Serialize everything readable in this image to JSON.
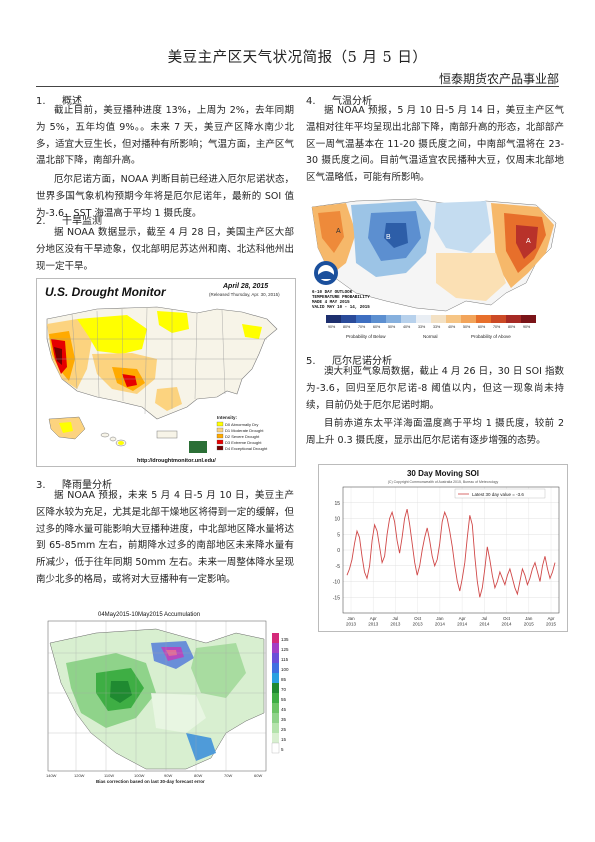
{
  "title": "美豆主产区天气状况简报（5 月 5 日）",
  "org": "恒泰期货农产品事业部",
  "sections": [
    {
      "num": "1.",
      "heading": "概述",
      "paras": [
        "截止目前，美豆播种进度 13%，上周为 2%，去年同期为 5%，五年均值 9%。。未来 7 天，美豆产区降水南少北多，适宜大豆生长，但对播种有所影响；气温方面，主产区气温北部下降，南部升高。",
        "厄尔尼诺方面，NOAA 判断目前已经进入厄尔尼诺状态，世界多国气象机构预期今年将是厄尔尼诺年，最新的 SOI 值为-3.6，SST 海温高于平均 1 摄氏度。"
      ]
    },
    {
      "num": "2.",
      "heading": "干旱监测",
      "paras": [
        "据 NOAA 数据显示，截至 4 月 28 日，美国主产区大部分地区没有干旱迹象，仅北部明尼苏达州和南、北达科他州出现一定干旱。"
      ]
    },
    {
      "num": "3.",
      "heading": "降雨量分析",
      "paras": [
        "据 NOAA 预报，未来 5 月 4 日-5 月 10 日，美豆主产区降水较为充足，尤其是北部干燥地区将得到一定的缓解，但过多的降水量可能影响大豆播种进度，中北部地区降水量将达到 65-85mm 左右，前期降水过多的南部地区未来降水量有所减少，低于往年同期 50mm 左右。未来一周整体降水呈现南少北多的格局，或将对大豆播种有一定影响。"
      ]
    },
    {
      "num": "4.",
      "heading": "气温分析",
      "paras": [
        "据 NOAA 预报，5 月 10 日-5 月 14 日，美豆主产区气温相对往年平均呈现出北部下降，南部升高的形态，北部部产区一周气温基本在 11-20 摄氏度之间，中南部气温将在 23-30 摄氏度之间。目前气温适宜农民播种大豆，仅周末北部地区气温略低，可能有所影响。"
      ]
    },
    {
      "num": "5.",
      "heading": "厄尔尼诺分析",
      "paras": [
        "澳大利亚气象局数据，截止 4 月 26 日，30 日 SOI 指数为-3.6，回归至厄尔尼诺-8 阈值以内，但这一现象尚未持续，目前仍处于厄尔尼诺时期。",
        "目前赤道东太平洋海面温度高于平均 1 摄氏度，较前 2 周上升 0.3 摄氏度，显示出厄尔尼诺有逐步增强的态势。"
      ]
    }
  ],
  "figures": {
    "drought": {
      "title": "U.S. Drought Monitor",
      "date": "April 28, 2015",
      "released": "(Released Thursday, Apr. 30, 2015)",
      "url": "http://droughtmonitor.unl.edu/",
      "legend_title": "Intensity:",
      "legend": [
        "D0 Abnormally Dry",
        "D1 Moderate Drought",
        "D2 Severe Drought",
        "D3 Extreme Drought",
        "D4 Exceptional Drought"
      ],
      "colors": [
        "#ffff00",
        "#fcd37f",
        "#ffaa00",
        "#e60000",
        "#730000"
      ]
    },
    "precip": {
      "header": "04May2015-10May2015 Accumulation",
      "footer": "Bias correction based on last 30-day forecast error",
      "scale": [
        "135",
        "125",
        "115",
        "100",
        "85",
        "70",
        "55",
        "45",
        "35",
        "25",
        "15",
        "5"
      ],
      "lon": [
        "140W",
        "120W",
        "110W",
        "100W",
        "90W",
        "80W",
        "70W",
        "60W"
      ]
    },
    "temp": {
      "caption_lines": [
        "6-10 DAY OUTLOOK",
        "TEMPERATURE PROBABILITY",
        "MADE 4 MAY 2015",
        "VALID MAY 10 - 14, 2015"
      ],
      "below": "Probability of Below",
      "normal": "Normal",
      "above": "Probability of Above",
      "pcts": [
        "90%",
        "80%",
        "70%",
        "60%",
        "50%",
        "40%",
        "33%",
        "33%",
        "40%",
        "50%",
        "60%",
        "70%",
        "80%",
        "90%"
      ]
    },
    "soi": {
      "title": "30 Day Moving SOI",
      "source": "(C) Copyright Commonwealth of Australia 2015, Bureau of Meteorology",
      "latest": "Latest 30 day value = -3.6"
    }
  },
  "chart_data": {
    "type": "line",
    "title": "30 Day Moving SOI",
    "ylim": [
      -20,
      20
    ],
    "yticks": [
      15,
      10,
      5,
      0,
      -5,
      -10,
      -15
    ],
    "xticks": [
      "Jan\n2013",
      "Apr\n2013",
      "Jul\n2013",
      "Oct\n2013",
      "Jan\n2014",
      "Apr\n2014",
      "Jul\n2014",
      "Oct\n2014",
      "Jan\n2015",
      "Apr\n2015"
    ],
    "series": [
      {
        "values": [
          -8,
          -6,
          -3,
          2,
          6,
          4,
          -2,
          -7,
          -9,
          -5,
          3,
          8,
          6,
          1,
          -4,
          -2,
          5,
          10,
          12,
          9,
          3,
          -1,
          4,
          10,
          13,
          8,
          2,
          -4,
          -8,
          -5,
          0,
          4,
          7,
          3,
          -2,
          -5,
          -3,
          2,
          9,
          12,
          10,
          6,
          1,
          -5,
          -10,
          -13,
          -9,
          -4,
          4,
          11,
          8,
          -2,
          -10,
          -15,
          -12,
          -6,
          1,
          -3,
          -8,
          -12,
          -10,
          -7,
          -9,
          -11,
          -8,
          -6,
          -9,
          -12,
          -14,
          -10,
          -6,
          -8,
          -11,
          -9,
          -6,
          -4,
          -7,
          -10,
          -5,
          -2,
          -6,
          -9,
          -7,
          -4
        ]
      }
    ]
  }
}
